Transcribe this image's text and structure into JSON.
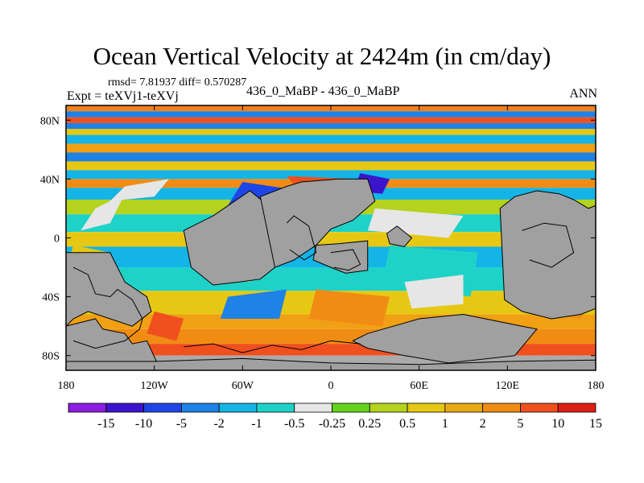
{
  "chart_data": {
    "type": "heatmap",
    "title": "Ocean Vertical Velocity at 2424m (in cm/day)",
    "stats_text": "rmsd= 7.81937 diff= 0.570287",
    "left_label": "Expt = teXVj1-teXVj",
    "center_label": "436_0_MaBP - 436_0_MaBP",
    "right_label": "ANN",
    "x_range": [
      -180,
      180
    ],
    "y_range": [
      -90,
      90
    ],
    "x_ticks": [
      {
        "value": -180,
        "label": "180"
      },
      {
        "value": -120,
        "label": "120W"
      },
      {
        "value": -60,
        "label": "60W"
      },
      {
        "value": 0,
        "label": "0"
      },
      {
        "value": 60,
        "label": "60E"
      },
      {
        "value": 120,
        "label": "120E"
      },
      {
        "value": 180,
        "label": "180"
      }
    ],
    "y_ticks": [
      {
        "value": 80,
        "label": "80N"
      },
      {
        "value": 40,
        "label": "40N"
      },
      {
        "value": 0,
        "label": "0"
      },
      {
        "value": -40,
        "label": "40S"
      },
      {
        "value": -80,
        "label": "80S"
      }
    ],
    "colorbar": {
      "colors": [
        "#8c1ee0",
        "#3c14cc",
        "#1e46e6",
        "#1e82e6",
        "#14b4e6",
        "#1ed2c8",
        "#e6e6e6",
        "#64d21e",
        "#b4d21e",
        "#e6c814",
        "#e6aa14",
        "#f08c14",
        "#f0501e",
        "#dc1e14"
      ],
      "labels": [
        "-15",
        "-10",
        "-5",
        "-2",
        "-1",
        "-0.5",
        "-0.25",
        "0.25",
        "0.5",
        "1",
        "2",
        "5",
        "10",
        "15"
      ]
    },
    "bands": [
      {
        "lat1": 86,
        "lat2": 90,
        "color": "#f0821e"
      },
      {
        "lat1": 82,
        "lat2": 86,
        "color": "#1e82e6"
      },
      {
        "lat1": 78,
        "lat2": 82,
        "color": "#f0501e"
      },
      {
        "lat1": 74,
        "lat2": 78,
        "color": "#1e82e6"
      },
      {
        "lat1": 70,
        "lat2": 74,
        "color": "#e6c814"
      },
      {
        "lat1": 64,
        "lat2": 70,
        "color": "#14b4e6"
      },
      {
        "lat1": 58,
        "lat2": 64,
        "color": "#f0a014"
      },
      {
        "lat1": 52,
        "lat2": 58,
        "color": "#1e82e6"
      },
      {
        "lat1": 46,
        "lat2": 52,
        "color": "#e6c814"
      },
      {
        "lat1": 40,
        "lat2": 46,
        "color": "#14b4e6"
      },
      {
        "lat1": 34,
        "lat2": 40,
        "color": "#f08c14"
      },
      {
        "lat1": 26,
        "lat2": 34,
        "color": "#14b4e6"
      },
      {
        "lat1": 16,
        "lat2": 26,
        "color": "#b4d21e"
      },
      {
        "lat1": 4,
        "lat2": 16,
        "color": "#1ed2c8"
      },
      {
        "lat1": -6,
        "lat2": 4,
        "color": "#e6c814"
      },
      {
        "lat1": -20,
        "lat2": -6,
        "color": "#14b4e6"
      },
      {
        "lat1": -36,
        "lat2": -20,
        "color": "#1ed2c8"
      },
      {
        "lat1": -52,
        "lat2": -36,
        "color": "#e6c814"
      },
      {
        "lat1": -62,
        "lat2": -52,
        "color": "#f0a014"
      },
      {
        "lat1": -72,
        "lat2": -62,
        "color": "#f08c14"
      },
      {
        "lat1": -80,
        "lat2": -72,
        "color": "#f0501e"
      },
      {
        "lat1": -90,
        "lat2": -80,
        "color": "#aaaaaa"
      }
    ],
    "patches": [
      {
        "lon": [
          -160,
          -140,
          -150,
          -170
        ],
        "lat": [
          20,
          30,
          10,
          5
        ],
        "color": "#e6e6e6"
      },
      {
        "lon": [
          -140,
          -110,
          -120,
          -150
        ],
        "lat": [
          35,
          40,
          28,
          25
        ],
        "color": "#e6e6e6"
      },
      {
        "lon": [
          -60,
          -20,
          -30,
          -70
        ],
        "lat": [
          38,
          32,
          20,
          22
        ],
        "color": "#1e46e6"
      },
      {
        "lon": [
          -30,
          20,
          10,
          -20
        ],
        "lat": [
          42,
          40,
          28,
          30
        ],
        "color": "#f0501e"
      },
      {
        "lon": [
          20,
          40,
          35,
          15
        ],
        "lat": [
          44,
          40,
          30,
          32
        ],
        "color": "#3c14cc"
      },
      {
        "lon": [
          30,
          90,
          80,
          25
        ],
        "lat": [
          20,
          15,
          0,
          5
        ],
        "color": "#e6e6e6"
      },
      {
        "lon": [
          40,
          100,
          95,
          35
        ],
        "lat": [
          -5,
          -10,
          -40,
          -30
        ],
        "color": "#1ed2c8"
      },
      {
        "lon": [
          50,
          90,
          90,
          55
        ],
        "lat": [
          -30,
          -25,
          -45,
          -48
        ],
        "color": "#e6e6e6"
      },
      {
        "lon": [
          -10,
          40,
          35,
          -15
        ],
        "lat": [
          -35,
          -40,
          -60,
          -55
        ],
        "color": "#f08c14"
      },
      {
        "lon": [
          -80,
          -50,
          -55,
          -85
        ],
        "lat": [
          -5,
          -10,
          -30,
          -25
        ],
        "color": "#e6c814"
      },
      {
        "lon": [
          -120,
          -100,
          -105,
          -125
        ],
        "lat": [
          -50,
          -55,
          -70,
          -65
        ],
        "color": "#f0501e"
      },
      {
        "lon": [
          -70,
          -30,
          -35,
          -75
        ],
        "lat": [
          -40,
          -35,
          -55,
          -55
        ],
        "color": "#1e82e6"
      },
      {
        "lon": [
          140,
          175,
          170,
          135
        ],
        "lat": [
          -35,
          -40,
          -55,
          -50
        ],
        "color": "#f08c14"
      },
      {
        "lon": [
          -175,
          -150,
          -155,
          -178
        ],
        "lat": [
          -5,
          -10,
          -20,
          -15
        ],
        "color": "#e6c814"
      }
    ],
    "land": [
      {
        "lon": [
          -180,
          -150,
          -145,
          -140,
          -125,
          -122,
          -135,
          -150,
          -165,
          -175,
          -180
        ],
        "lat": [
          -10,
          -10,
          -20,
          -30,
          -40,
          -50,
          -60,
          -55,
          -50,
          -55,
          -60
        ]
      },
      {
        "lon": [
          -180,
          -160,
          -155,
          -140,
          -135,
          -125,
          -118,
          -130,
          -145,
          -160,
          -175,
          -180
        ],
        "lat": [
          -60,
          -55,
          -62,
          -65,
          -72,
          -70,
          -85,
          -90,
          -90,
          -90,
          -90,
          -90
        ]
      },
      {
        "lon": [
          -100,
          -80,
          -55,
          -50,
          -40,
          -35,
          -38,
          -48,
          -62,
          -80,
          -95
        ],
        "lat": [
          5,
          15,
          32,
          28,
          20,
          5,
          -20,
          -28,
          -30,
          -32,
          -20
        ]
      },
      {
        "lon": [
          -48,
          -30,
          -20,
          5,
          25,
          30,
          15,
          0,
          -10,
          -25,
          -38
        ],
        "lat": [
          28,
          35,
          38,
          40,
          40,
          25,
          12,
          6,
          -5,
          -15,
          -20
        ]
      },
      {
        "lon": [
          -10,
          5,
          25,
          25,
          10,
          0,
          -12
        ],
        "lat": [
          -5,
          -4,
          -2,
          -22,
          -24,
          -20,
          -15
        ]
      },
      {
        "lon": [
          38,
          45,
          55,
          50,
          40
        ],
        "lat": [
          3,
          8,
          0,
          -6,
          -4
        ]
      },
      {
        "lon": [
          115,
          125,
          140,
          155,
          165,
          175,
          180,
          180,
          170,
          150,
          130,
          118
        ],
        "lat": [
          20,
          28,
          32,
          30,
          26,
          20,
          22,
          -48,
          -52,
          -55,
          -50,
          -42
        ]
      },
      {
        "lon": [
          25,
          60,
          90,
          110,
          130,
          140,
          125,
          80,
          50,
          25,
          15
        ],
        "lat": [
          -65,
          -55,
          -52,
          -56,
          -60,
          -62,
          -80,
          -85,
          -80,
          -75,
          -70
        ]
      },
      {
        "lon": [
          -180,
          -120,
          -60,
          0,
          60,
          120,
          180,
          180,
          -180
        ],
        "lat": [
          -84,
          -84,
          -82,
          -85,
          -86,
          -84,
          -83,
          -90,
          -90
        ]
      }
    ],
    "coast_lines": [
      {
        "lon": [
          -175,
          -165,
          -160,
          -150,
          -145,
          -135,
          -128,
          -130,
          -140,
          -160,
          -175
        ],
        "lat": [
          -20,
          -25,
          -38,
          -40,
          -35,
          -42,
          -55,
          -62,
          -70,
          -75,
          -70
        ]
      },
      {
        "lon": [
          -30,
          -25,
          -15,
          -10,
          -18,
          -28
        ],
        "lat": [
          10,
          15,
          8,
          -10,
          -15,
          -8
        ]
      },
      {
        "lon": [
          0,
          15,
          20,
          12,
          2
        ],
        "lat": [
          -10,
          -8,
          -18,
          -22,
          -20
        ]
      },
      {
        "lon": [
          130,
          145,
          160,
          165,
          150,
          135
        ],
        "lat": [
          5,
          10,
          8,
          -10,
          -20,
          -15
        ]
      },
      {
        "lon": [
          -100,
          -80,
          -60,
          -40,
          -20,
          0,
          20
        ],
        "lat": [
          -74,
          -72,
          -78,
          -73,
          -76,
          -70,
          -72
        ]
      }
    ]
  }
}
